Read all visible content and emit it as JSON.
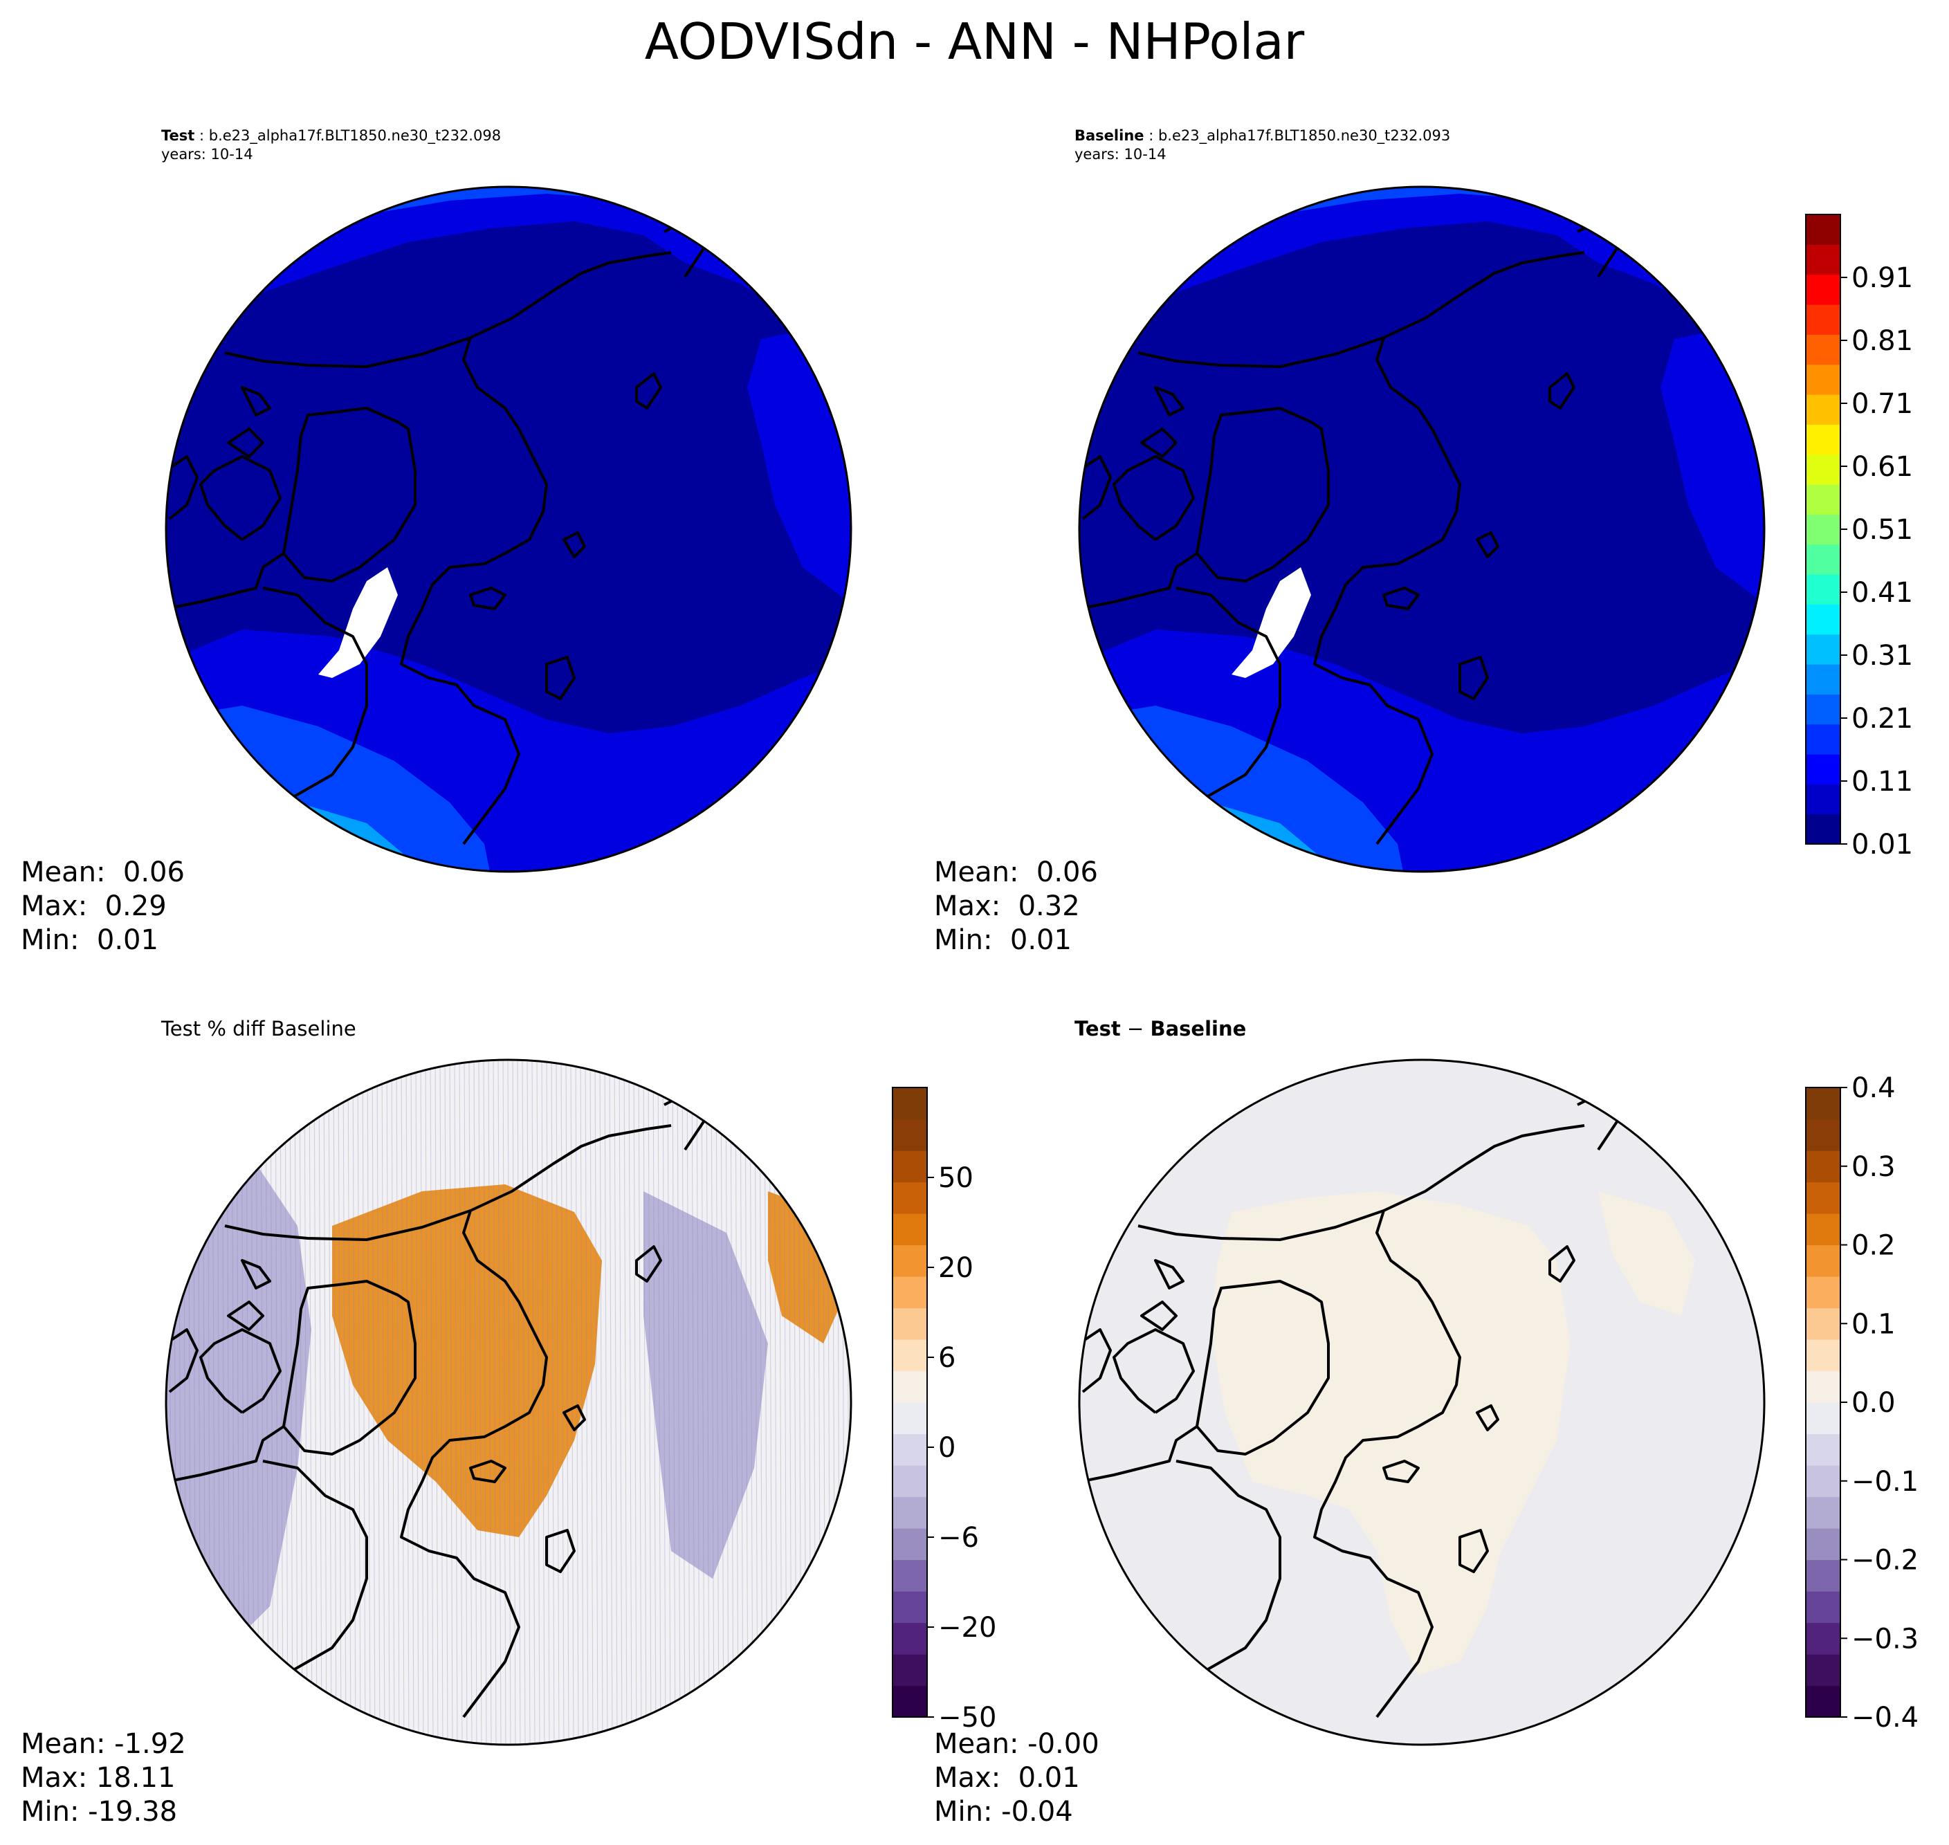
{
  "figure_title": "AODVISdn - ANN - NHPolar",
  "panels": {
    "test": {
      "label": "Test",
      "case": " : b.e23_alpha17f.BLT1850.ne30_t232.098",
      "years": "years: 10-14",
      "stats": {
        "mean": "Mean:  0.06",
        "max": "Max:  0.29",
        "min": "Min:  0.01"
      }
    },
    "baseline": {
      "label": "Baseline",
      "case": " : b.e23_alpha17f.BLT1850.ne30_t232.093",
      "years": "years: 10-14",
      "stats": {
        "mean": "Mean:  0.06",
        "max": "Max:  0.32",
        "min": "Min:  0.01"
      }
    },
    "pct_diff": {
      "title": "Test % diff Baseline",
      "stats": {
        "mean": "Mean: -1.92",
        "max": "Max: 18.11",
        "min": "Min: -19.38"
      }
    },
    "diff": {
      "title_a": "Test",
      "title_sep": " − ",
      "title_b": "Baseline",
      "stats": {
        "mean": "Mean: -0.00",
        "max": "Max:  0.01",
        "min": "Min: -0.04"
      }
    }
  },
  "colorbars": {
    "main": {
      "colors": [
        "#00008f",
        "#0000c8",
        "#0000ff",
        "#0030ff",
        "#0060ff",
        "#0090ff",
        "#00c0ff",
        "#00f0ff",
        "#20ffd0",
        "#50ffa0",
        "#80ff70",
        "#b0ff40",
        "#e0ff10",
        "#fff000",
        "#ffc000",
        "#ff9000",
        "#ff6000",
        "#ff3000",
        "#ff0000",
        "#c00000",
        "#8f0000"
      ],
      "tick_labels": [
        "0.01",
        "0.11",
        "0.21",
        "0.31",
        "0.41",
        "0.51",
        "0.61",
        "0.71",
        "0.81",
        "0.91"
      ]
    },
    "pct": {
      "colors": [
        "#2d004b",
        "#3e0f5e",
        "#52237c",
        "#644399",
        "#7d66ac",
        "#9a8ec0",
        "#b2abd2",
        "#c8c3e0",
        "#d8d6eb",
        "#ebecf1",
        "#f6efe5",
        "#fde0bd",
        "#fdc993",
        "#fbaf5e",
        "#f2942f",
        "#e0790e",
        "#c86107",
        "#ac4d05",
        "#8a3d07",
        "#7f3b08"
      ],
      "tick_labels": [
        "−50",
        "−20",
        "−6",
        "0",
        "6",
        "20",
        "50"
      ]
    },
    "diff": {
      "colors": [
        "#2d004b",
        "#3e0f5e",
        "#52237c",
        "#644399",
        "#7d66ac",
        "#9a8ec0",
        "#b2abd2",
        "#c8c3e0",
        "#d8d6eb",
        "#ebecf1",
        "#f6efe5",
        "#fde0bd",
        "#fdc993",
        "#fbaf5e",
        "#f2942f",
        "#e0790e",
        "#c86107",
        "#ac4d05",
        "#8a3d07",
        "#7f3b08"
      ],
      "tick_labels": [
        "−0.4",
        "−0.3",
        "−0.2",
        "−0.1",
        "0.0",
        "0.1",
        "0.2",
        "0.3",
        "0.4"
      ]
    }
  },
  "map_colors": {
    "aod_low": "#00009a",
    "aod_mid": "#0000e0",
    "aod_high": "#0044ff",
    "aod_max": "#00a0ff",
    "ice_sheet": "#ffffff",
    "pct_neutral": "#f2f1f4",
    "pct_positive": "#e8922c",
    "pct_negative": "#b8b3d8",
    "diff_neutral": "#ebebf0",
    "diff_positive": "#f6efe4",
    "coastline": "#000000"
  }
}
